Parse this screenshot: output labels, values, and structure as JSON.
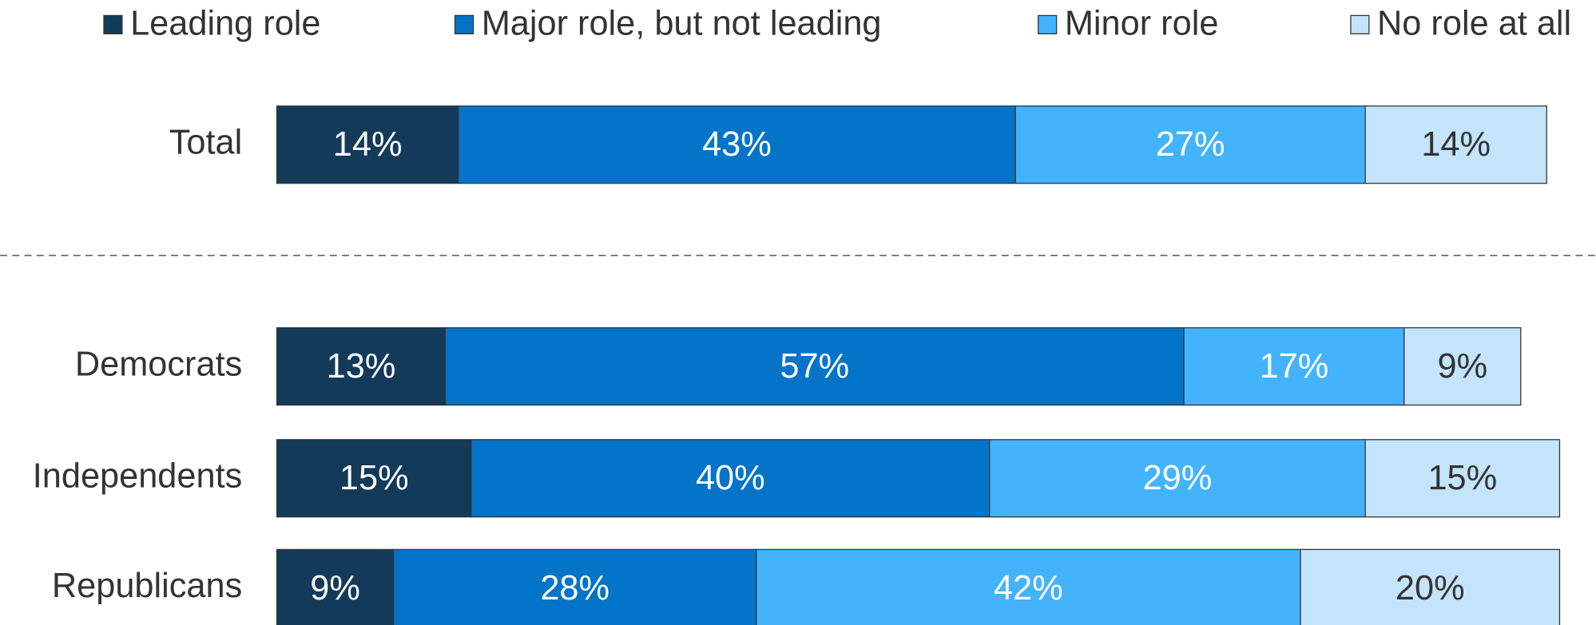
{
  "chart_data": {
    "type": "stacked-bar-horizontal",
    "categories": [
      "Total",
      "Democrats",
      "Independents",
      "Republicans"
    ],
    "series": [
      {
        "name": "Leading role",
        "color": "#143a5a",
        "values": [
          14,
          13,
          15,
          9
        ],
        "value_labels": [
          "14%",
          "13%",
          "15%",
          "9%"
        ]
      },
      {
        "name": "Major role, but not leading",
        "color": "#0474c8",
        "values": [
          43,
          57,
          40,
          28
        ],
        "value_labels": [
          "43%",
          "57%",
          "40%",
          "28%"
        ]
      },
      {
        "name": "Minor role",
        "color": "#44b3fd",
        "values": [
          27,
          17,
          29,
          42
        ],
        "value_labels": [
          "27%",
          "17%",
          "29%",
          "42%"
        ]
      },
      {
        "name": "No role at all",
        "color": "#c3e4fb",
        "values": [
          14,
          9,
          15,
          20
        ],
        "value_labels": [
          "14%",
          "9%",
          "15%",
          "20%"
        ]
      }
    ],
    "legend": "top"
  }
}
